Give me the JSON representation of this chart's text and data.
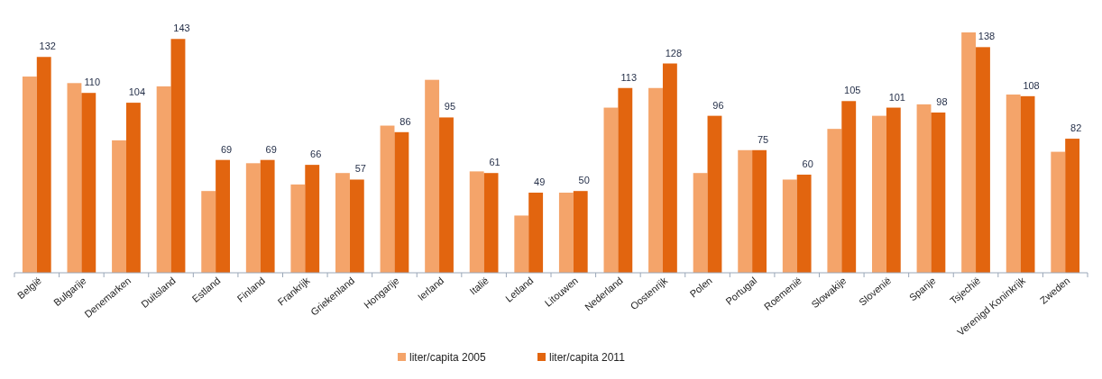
{
  "chart_data": {
    "type": "bar",
    "categories": [
      "België",
      "Bulgarije",
      "Denemarken",
      "Duitsland",
      "Estland",
      "Finland",
      "Frankrijk",
      "Griekenland",
      "Hongarije",
      "Ierland",
      "Italië",
      "Letland",
      "Litouwen",
      "Nederland",
      "Oostenrijk",
      "Polen",
      "Portugal",
      "Roemenië",
      "Slowakije",
      "Slovenië",
      "Spanje",
      "Tsjechië",
      "Verenigd Koninkrijk",
      "Zweden"
    ],
    "series": [
      {
        "name": "liter/capita 2005",
        "color": "#f4a46a",
        "values": [
          120,
          116,
          81,
          114,
          50,
          67,
          54,
          61,
          90,
          118,
          62,
          35,
          49,
          101,
          113,
          61,
          75,
          57,
          88,
          96,
          103,
          147,
          109,
          74
        ]
      },
      {
        "name": "liter/capita 2011",
        "color": "#e2650f",
        "values": [
          132,
          110,
          104,
          143,
          69,
          69,
          66,
          57,
          86,
          95,
          61,
          49,
          50,
          113,
          128,
          96,
          75,
          60,
          105,
          101,
          98,
          138,
          108,
          82
        ],
        "value_labels": [
          "132",
          "110",
          "104",
          "143",
          "69",
          "69",
          "66",
          "57",
          "86",
          "95",
          "61",
          "49",
          "50",
          "113",
          "128",
          "96",
          "75",
          "60",
          "105",
          "101",
          "98",
          "138",
          "108",
          "82"
        ]
      }
    ],
    "tick_labels": "x",
    "legend": "bottom"
  }
}
